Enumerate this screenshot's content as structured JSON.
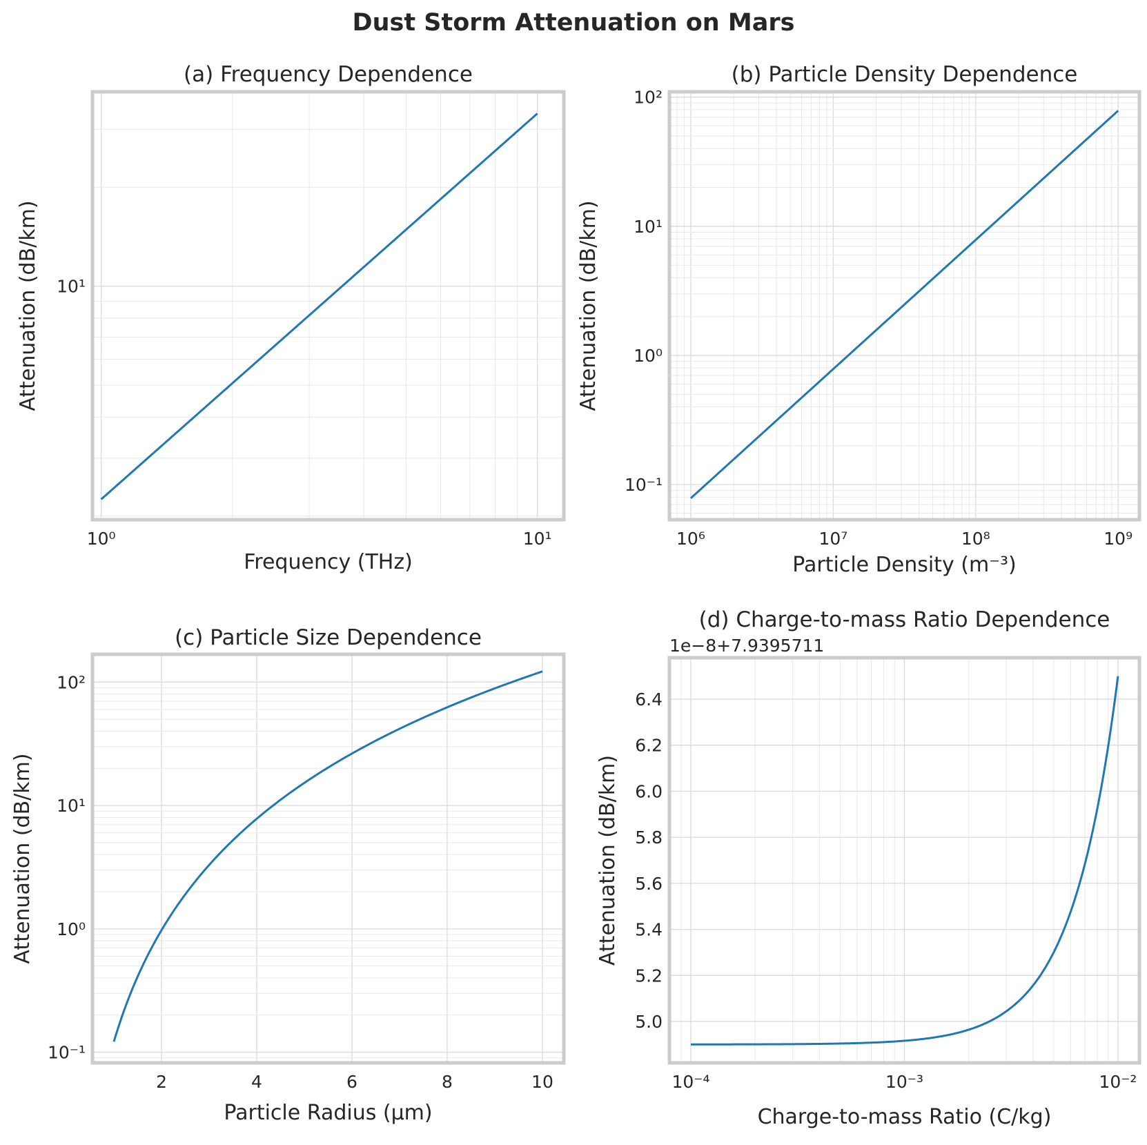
{
  "figure_title": "Dust Storm Attenuation on Mars",
  "chart_data": [
    {
      "type": "line",
      "title": "(a) Frequency Dependence",
      "xlabel": "Frequency (THz)",
      "ylabel": "Attenuation (dB/km)",
      "xscale": "log",
      "yscale": "log",
      "xlim": [
        0.955,
        11.5
      ],
      "ylim": [
        1.95,
        39
      ],
      "x_ticks": [
        {
          "value": 1,
          "label": "10⁰"
        },
        {
          "value": 10,
          "label": "10¹"
        }
      ],
      "y_ticks": [
        {
          "value": 10,
          "label": "10¹"
        }
      ],
      "series": [
        {
          "name": "attenuation",
          "color": "#1f77b4",
          "x": [
            1,
            10
          ],
          "y": [
            2.25,
            33.5
          ],
          "law": "power"
        }
      ]
    },
    {
      "type": "line",
      "title": "(b) Particle Density Dependence",
      "xlabel": "Particle Density (m⁻³)",
      "ylabel": "Attenuation (dB/km)",
      "xscale": "log",
      "yscale": "log",
      "xlim": [
        708000,
        1410000000
      ],
      "ylim": [
        0.0535,
        110
      ],
      "x_ticks": [
        {
          "value": 1000000,
          "label": "10⁶"
        },
        {
          "value": 10000000,
          "label": "10⁷"
        },
        {
          "value": 100000000,
          "label": "10⁸"
        },
        {
          "value": 1000000000,
          "label": "10⁹"
        }
      ],
      "y_ticks": [
        {
          "value": 0.1,
          "label": "10⁻¹"
        },
        {
          "value": 1,
          "label": "10⁰"
        },
        {
          "value": 10,
          "label": "10¹"
        },
        {
          "value": 100,
          "label": "10²"
        }
      ],
      "series": [
        {
          "name": "attenuation",
          "color": "#1f77b4",
          "x": [
            1000000,
            1000000000
          ],
          "y": [
            0.0785,
            78.5
          ],
          "law": "power"
        }
      ]
    },
    {
      "type": "line",
      "title": "(c) Particle Size Dependence",
      "xlabel": "Particle Radius (μm)",
      "ylabel": "Attenuation (dB/km)",
      "xscale": "linear",
      "yscale": "log",
      "xlim": [
        0.55,
        10.45
      ],
      "ylim": [
        0.082,
        168
      ],
      "x_ticks": [
        {
          "value": 2,
          "label": "2"
        },
        {
          "value": 4,
          "label": "4"
        },
        {
          "value": 6,
          "label": "6"
        },
        {
          "value": 8,
          "label": "8"
        },
        {
          "value": 10,
          "label": "10"
        }
      ],
      "y_ticks": [
        {
          "value": 0.1,
          "label": "10⁻¹"
        },
        {
          "value": 1,
          "label": "10⁰"
        },
        {
          "value": 10,
          "label": "10¹"
        },
        {
          "value": 100,
          "label": "10²"
        }
      ],
      "series": [
        {
          "name": "attenuation",
          "color": "#1f77b4",
          "x": [
            1,
            10
          ],
          "y": [
            0.122,
            122
          ],
          "law": "y = 0.122·r³"
        }
      ]
    },
    {
      "type": "line",
      "title": "(d) Charge-to-mass Ratio Dependence",
      "offset_text": "1e−8+7.9395711",
      "xlabel": "Charge-to-mass Ratio (C/kg)",
      "ylabel": "Attenuation (dB/km)",
      "xscale": "log",
      "yscale": "linear",
      "xlim": [
        7.94e-05,
        0.0126
      ],
      "ylim": [
        4.82,
        6.58
      ],
      "x_ticks": [
        {
          "value": 0.0001,
          "label": "10⁻⁴"
        },
        {
          "value": 0.001,
          "label": "10⁻³"
        },
        {
          "value": 0.01,
          "label": "10⁻²"
        }
      ],
      "y_ticks": [
        {
          "value": 5.0,
          "label": "5.0"
        },
        {
          "value": 5.2,
          "label": "5.2"
        },
        {
          "value": 5.4,
          "label": "5.4"
        },
        {
          "value": 5.6,
          "label": "5.6"
        },
        {
          "value": 5.8,
          "label": "5.8"
        },
        {
          "value": 6.0,
          "label": "6.0"
        },
        {
          "value": 6.2,
          "label": "6.2"
        },
        {
          "value": 6.4,
          "label": "6.4"
        }
      ],
      "series": [
        {
          "name": "attenuation",
          "color": "#1f77b4",
          "x": [
            0.0001,
            0.01
          ],
          "y": [
            4.9,
            6.5
          ],
          "law": "y = 4.9 + 16000·q²"
        }
      ]
    }
  ]
}
